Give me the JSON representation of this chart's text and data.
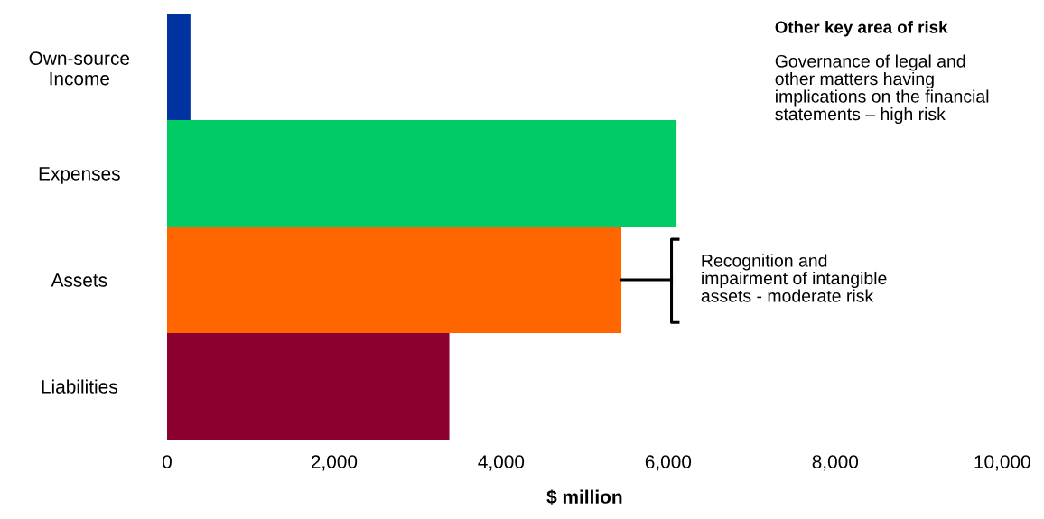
{
  "chart_data": {
    "type": "bar",
    "orientation": "horizontal",
    "xlabel": "$ million",
    "categories": [
      "Own-source\nIncome",
      "Expenses",
      "Assets",
      "Liabilities"
    ],
    "values": [
      280,
      6100,
      5440,
      3380
    ],
    "colors": [
      "#0033a0",
      "#00cc66",
      "#ff6600",
      "#8b002e"
    ],
    "xlim": [
      0,
      10000
    ],
    "xticks": [
      {
        "value": 0,
        "label": "0"
      },
      {
        "value": 2000,
        "label": "2,000"
      },
      {
        "value": 4000,
        "label": "4,000"
      },
      {
        "value": 6000,
        "label": "6,000"
      },
      {
        "value": 8000,
        "label": "8,000"
      },
      {
        "value": 10000,
        "label": "10,000"
      }
    ],
    "grid": false,
    "legend": false,
    "annotations": [
      "Other key area of risk",
      "Governance of legal and\nother matters having\nimplications on the financial\nstatements – high risk",
      "Recognition and\nimpairment of intangible\nassets - moderate risk"
    ]
  }
}
